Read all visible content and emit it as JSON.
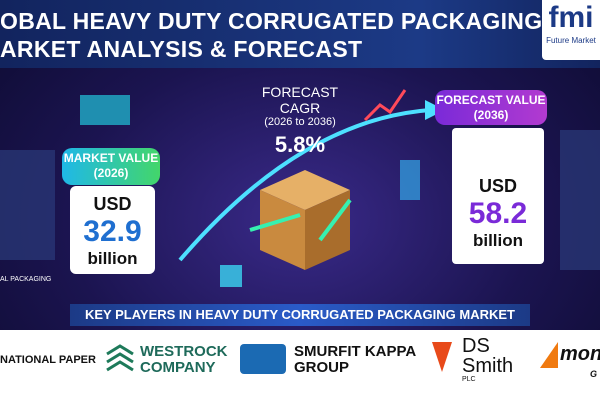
{
  "header": {
    "title_line1": "OBAL HEAVY DUTY CORRUGATED PACKAGING",
    "title_line2": "ARKET ANALYSIS & FORECAST",
    "logo": "fmi",
    "logo_caption": "Future Market"
  },
  "market_value": {
    "label": "MARKET VALUE",
    "year": "(2026)",
    "currency": "USD",
    "amount": "32.9",
    "unit": "billion"
  },
  "cagr": {
    "label": "FORECAST CAGR",
    "period": "(2026 to 2036)",
    "value": "5.8%"
  },
  "forecast_value": {
    "label": "FORECAST VALUE",
    "year": "(2036)",
    "currency": "USD",
    "amount": "58.2",
    "unit": "billion"
  },
  "side_caption": "AL PACKAGING",
  "key_players": {
    "title": "KEY PLAYERS IN HEAVY DUTY CORRUGATED PACKAGING MARKET",
    "companies": [
      {
        "name": "NATIONAL PAPER"
      },
      {
        "name": "WESTROCK",
        "sub": "COMPANY"
      },
      {
        "name": "SMURFIT KAPPA",
        "sub": "GROUP"
      },
      {
        "name": "DS",
        "sub": "Smith",
        "note": "PLC"
      },
      {
        "name": "mon",
        "sub": "G"
      }
    ]
  }
}
